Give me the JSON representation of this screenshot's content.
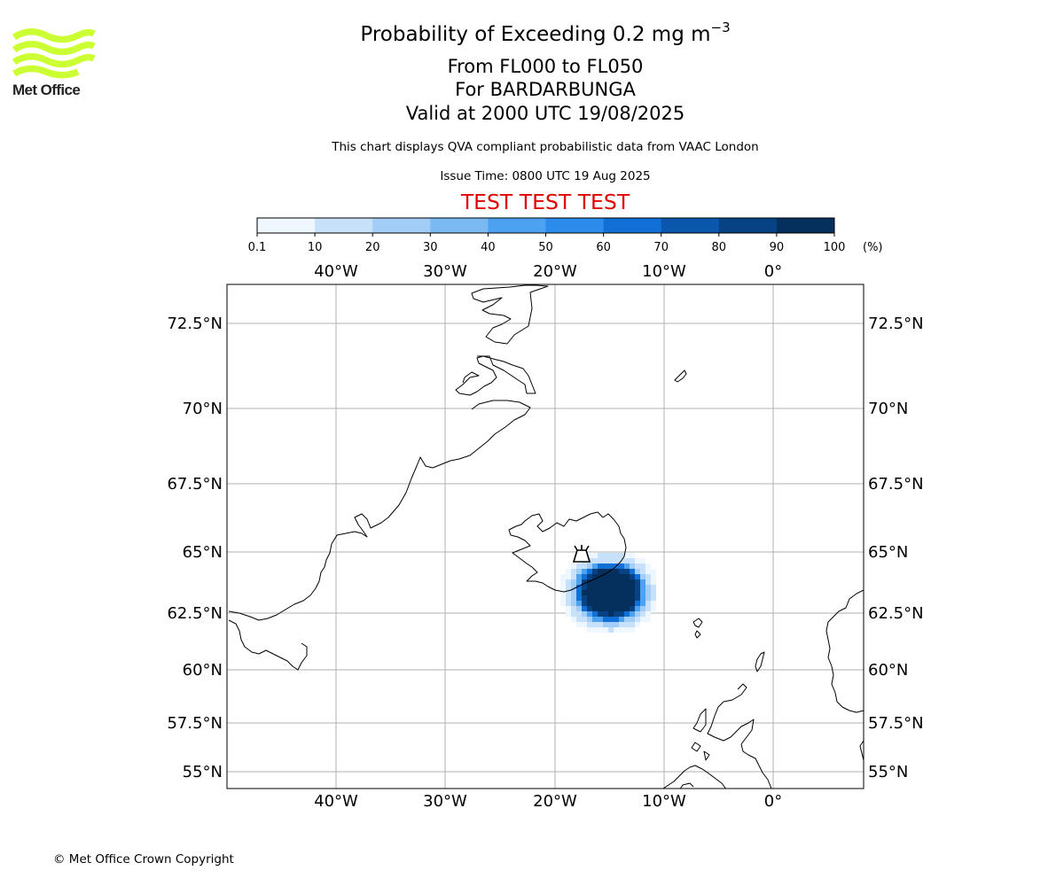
{
  "header": {
    "title_main": "Probability of Exceeding 0.2 mg m",
    "title_exponent": "−3",
    "flight_levels": "From FL000 to FL050",
    "volcano": "For BARDARBUNGA",
    "valid_time": "Valid at 2000 UTC 19/08/2025",
    "description": "This chart displays QVA compliant probabilistic data from VAAC London",
    "issue_time": "Issue Time: 0800 UTC 19 Aug 2025",
    "test_banner": "TEST TEST TEST"
  },
  "logo": {
    "text": "Met Office",
    "color": "#ccff33"
  },
  "colorbar": {
    "ticks": [
      "0.1",
      "10",
      "20",
      "30",
      "40",
      "50",
      "60",
      "70",
      "80",
      "90",
      "100"
    ],
    "unit": "(%)",
    "colors": [
      "#eef6ff",
      "#c7e1fb",
      "#a2cdf7",
      "#7bb9f3",
      "#4ca2f0",
      "#2b8cec",
      "#1170d6",
      "#0a57ad",
      "#074284",
      "#05305e"
    ]
  },
  "map": {
    "lon_labels": [
      "40°W",
      "30°W",
      "20°W",
      "10°W",
      "0°"
    ],
    "lat_labels": [
      "72.5°N",
      "70°N",
      "67.5°N",
      "65°N",
      "62.5°N",
      "60°N",
      "57.5°N",
      "55°N"
    ],
    "volcano_icon": "volcano-icon",
    "coastline_color": "#000000",
    "gridline_color": "#b0b0b0"
  },
  "footer": {
    "copyright": "© Met Office Crown Copyright"
  }
}
